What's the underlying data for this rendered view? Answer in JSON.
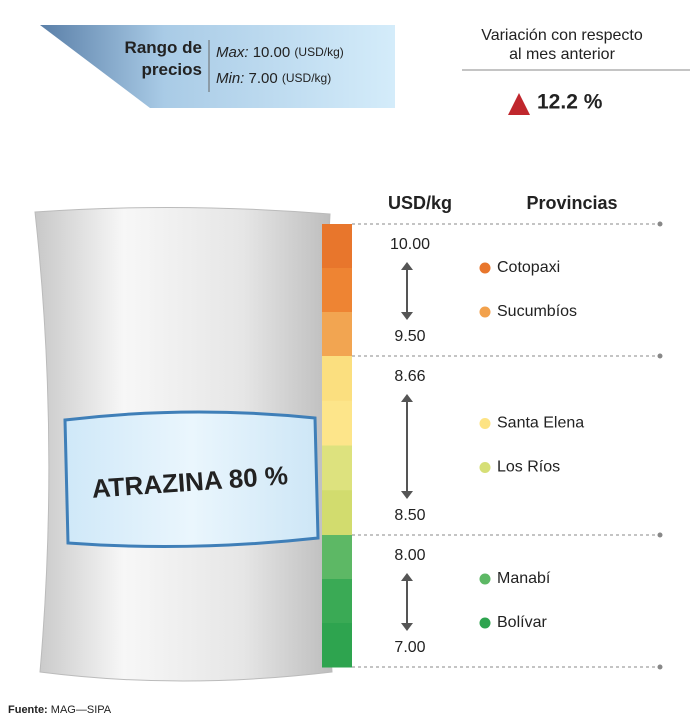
{
  "banner": {
    "title": "Rango de precios",
    "max_label": "Max:",
    "max_value": "10.00",
    "max_unit": "(USD/kg)",
    "min_label": "Min:",
    "min_value": "7.00",
    "min_unit": "(USD/kg)"
  },
  "variation": {
    "title_line1": "Variación con respecto",
    "title_line2": "al mes anterior",
    "value": "12.2 %"
  },
  "product": "ATRAZINA 80 %",
  "table": {
    "unit_header": "USD/kg",
    "province_header": "Provincias",
    "groups": [
      {
        "high": "10.00",
        "low": "9.50",
        "strip_colors": [
          "#e8762c",
          "#ee8433",
          "#f2a551"
        ],
        "provinces": [
          {
            "name": "Cotopaxi",
            "color": "#e8762c"
          },
          {
            "name": "Sucumbíos",
            "color": "#f2a14c"
          }
        ]
      },
      {
        "high": "8.66",
        "low": "8.50",
        "strip_colors": [
          "#fbdf7f",
          "#fde58a",
          "#dde27e",
          "#d2dc6e"
        ],
        "provinces": [
          {
            "name": "Santa Elena",
            "color": "#fde383"
          },
          {
            "name": "Los Ríos",
            "color": "#d6df76"
          }
        ]
      },
      {
        "high": "8.00",
        "low": "7.00",
        "strip_colors": [
          "#5db865",
          "#3aaa55",
          "#2ea44f"
        ],
        "provinces": [
          {
            "name": "Manabí",
            "color": "#5db865"
          },
          {
            "name": "Bolívar",
            "color": "#2ea44f"
          }
        ]
      }
    ]
  },
  "source": {
    "label": "Fuente:",
    "text": "MAG—SIPA"
  }
}
